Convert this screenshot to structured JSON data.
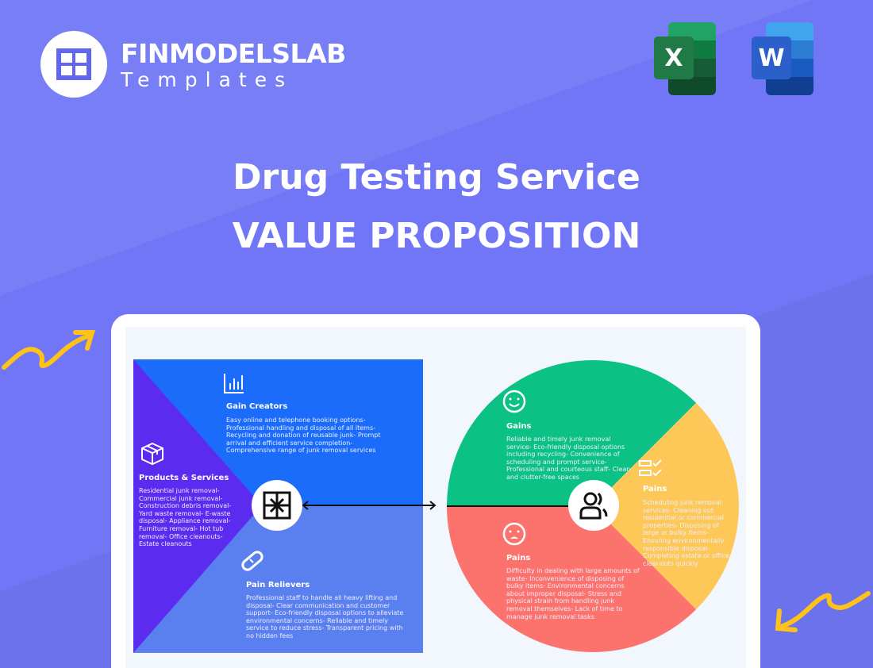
{
  "brand": {
    "name": "FINMODELSLAB",
    "sub": "Templates"
  },
  "apps": [
    {
      "name": "excel-icon",
      "letter": "X",
      "color": "#1f7a45"
    },
    {
      "name": "word-icon",
      "letter": "W",
      "color": "#2b5fc9"
    }
  ],
  "title": {
    "line1": "Drug Testing Service",
    "line2": "VALUE PROPOSITION"
  },
  "colors": {
    "background": "#7076f6",
    "gain_creators": "#1b6cfb",
    "pain_relievers": "#5a80ef",
    "products": "#5b2cf0",
    "gains": "#0bc184",
    "pains_customer": "#fdc857",
    "pains": "#fc726d"
  },
  "product_map": {
    "gain_creators": {
      "heading": "Gain Creators",
      "text": "Easy online and telephone booking options- Professional handling and disposal of all items- Recycling and donation of reusable junk- Prompt arrival and efficient service completion- Comprehensive range of junk removal services"
    },
    "products": {
      "heading": "Products & Services",
      "text": "Residential junk removal- Commercial junk removal- Construction debris removal- Yard waste removal- E-waste disposal- Appliance removal- Furniture removal- Hot tub removal- Office cleanouts- Estate cleanouts"
    },
    "pain_relievers": {
      "heading": "Pain Relievers",
      "text": "Professional staff to handle all heavy lifting and disposal- Clear communication and customer support- Eco-friendly disposal options to alleviate environmental concerns- Reliable and timely service to reduce stress- Transparent pricing with no hidden fees"
    }
  },
  "customer_profile": {
    "gains": {
      "heading": "Gains",
      "text": "Reliable and timely junk removal service- Eco-friendly disposal options including recycling- Convenience of scheduling and prompt service- Professional and courteous staff- Clean and clutter-free spaces"
    },
    "jobs": {
      "heading": "Pains",
      "text": "Scheduling junk removal services- Cleaning out residential or commercial properties- Disposing of large or bulky items- Ensuring environmentally responsible disposal- Completing estate or office cleanouts quickly"
    },
    "pains": {
      "heading": "Pains",
      "text": "Difficulty in dealing with large amounts of waste- Inconvenience of disposing of bulky items- Environmental concerns about improper disposal- Stress and physical strain from handling junk removal themselves- Lack of time to manage junk removal tasks"
    }
  }
}
